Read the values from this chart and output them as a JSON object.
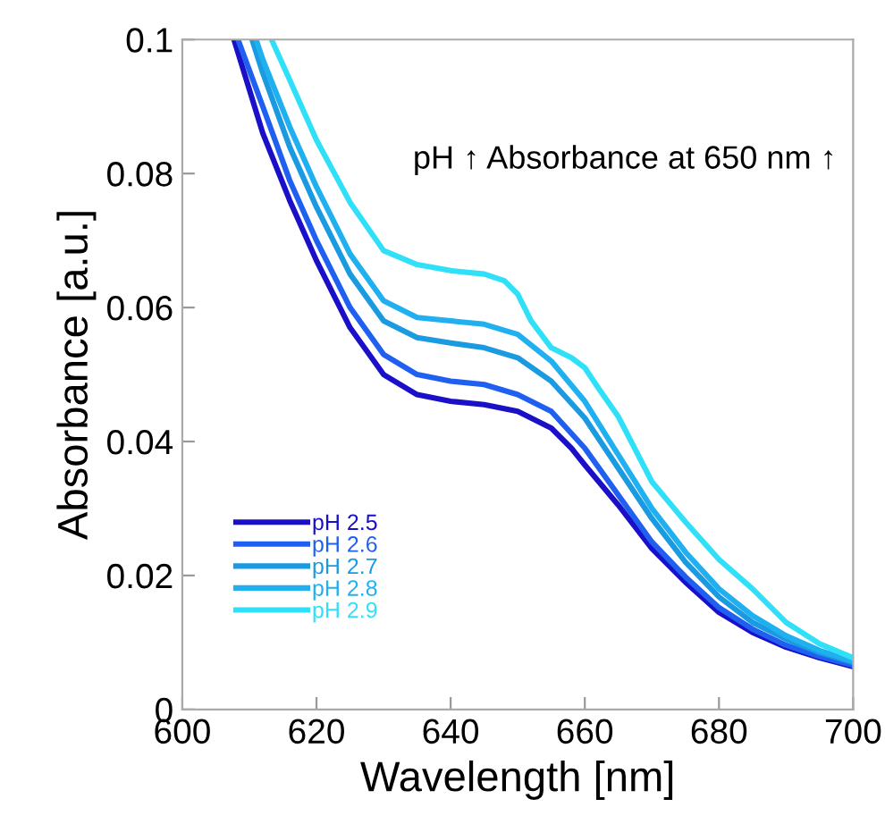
{
  "chart_data": {
    "type": "line",
    "xlabel": "Wavelength [nm]",
    "ylabel": "Absorbance [a.u.]",
    "annotations": [
      "pH ↑ Absorbance at 650 nm ↑"
    ],
    "xlim": [
      600,
      700
    ],
    "ylim": [
      0,
      0.1
    ],
    "xticks": [
      600,
      620,
      640,
      660,
      680,
      700
    ],
    "yticks": [
      0,
      0.02,
      0.04,
      0.06,
      0.08,
      0.1
    ],
    "grid": false,
    "legend": "bottom left",
    "marker": "none",
    "line_style": "solid",
    "series": [
      {
        "name": "pH 2.5",
        "color": "#1a10c8",
        "x": [
          607.7,
          612,
          616,
          620,
          625,
          630,
          635,
          640,
          645,
          650,
          655,
          658,
          660,
          665,
          670,
          675,
          680,
          685,
          690,
          695,
          700
        ],
        "values": [
          0.1,
          0.086,
          0.076,
          0.067,
          0.057,
          0.05,
          0.047,
          0.046,
          0.0455,
          0.0445,
          0.042,
          0.039,
          0.0365,
          0.0305,
          0.024,
          0.019,
          0.0145,
          0.0115,
          0.0093,
          0.0077,
          0.0064
        ]
      },
      {
        "name": "pH 2.6",
        "color": "#2060f0",
        "x": [
          608.3,
          612,
          616,
          620,
          625,
          630,
          635,
          640,
          645,
          650,
          655,
          660,
          665,
          670,
          675,
          680,
          685,
          690,
          695,
          700
        ],
        "values": [
          0.1,
          0.09,
          0.079,
          0.07,
          0.06,
          0.053,
          0.05,
          0.049,
          0.0485,
          0.047,
          0.0445,
          0.039,
          0.032,
          0.025,
          0.0198,
          0.0152,
          0.012,
          0.0096,
          0.0079,
          0.0066
        ]
      },
      {
        "name": "pH 2.7",
        "color": "#1a9ae0",
        "x": [
          610.4,
          612,
          616,
          620,
          625,
          630,
          635,
          640,
          645,
          650,
          655,
          660,
          665,
          670,
          675,
          680,
          685,
          690,
          695,
          700
        ],
        "values": [
          0.1,
          0.095,
          0.084,
          0.075,
          0.065,
          0.058,
          0.0555,
          0.0547,
          0.054,
          0.0525,
          0.049,
          0.0435,
          0.036,
          0.0285,
          0.022,
          0.0168,
          0.013,
          0.0105,
          0.0085,
          0.007
        ]
      },
      {
        "name": "pH 2.8",
        "color": "#20b0f0",
        "x": [
          611,
          612,
          616,
          620,
          625,
          630,
          635,
          640,
          645,
          650,
          655,
          660,
          665,
          670,
          675,
          680,
          685,
          690,
          695,
          700
        ],
        "values": [
          0.1,
          0.097,
          0.087,
          0.078,
          0.068,
          0.061,
          0.0585,
          0.058,
          0.0575,
          0.056,
          0.052,
          0.046,
          0.038,
          0.03,
          0.0235,
          0.018,
          0.014,
          0.011,
          0.0088,
          0.0072
        ]
      },
      {
        "name": "pH 2.9",
        "color": "#30e0f8",
        "x": [
          613.3,
          616,
          620,
          625,
          630,
          635,
          640,
          645,
          648,
          650,
          652,
          655,
          658,
          660,
          662,
          665,
          670,
          675,
          680,
          685,
          690,
          695,
          700
        ],
        "values": [
          0.1,
          0.094,
          0.085,
          0.0757,
          0.0685,
          0.0664,
          0.0655,
          0.065,
          0.064,
          0.062,
          0.058,
          0.054,
          0.0525,
          0.051,
          0.048,
          0.0437,
          0.034,
          0.028,
          0.0224,
          0.018,
          0.013,
          0.0098,
          0.0077
        ]
      }
    ]
  }
}
